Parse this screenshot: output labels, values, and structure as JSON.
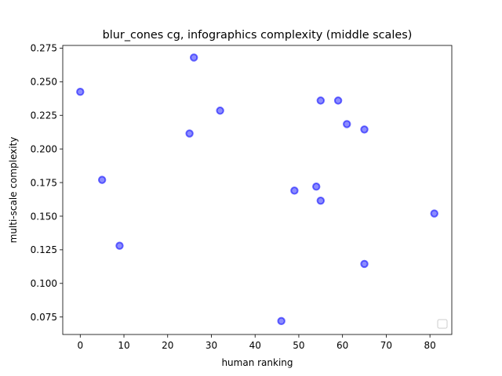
{
  "chart_data": {
    "type": "scatter",
    "title": "blur_cones cg, infographics complexity (middle scales)",
    "xlabel": "human ranking",
    "ylabel": "multi-scale complexity",
    "xlim": [
      -4,
      85
    ],
    "ylim": [
      0.062,
      0.277
    ],
    "xticks": [
      0,
      10,
      20,
      30,
      40,
      50,
      60,
      70,
      80
    ],
    "yticks": [
      0.075,
      0.1,
      0.125,
      0.15,
      0.175,
      0.2,
      0.225,
      0.25,
      0.275
    ],
    "xtick_labels": [
      "0",
      "10",
      "20",
      "30",
      "40",
      "50",
      "60",
      "70",
      "80"
    ],
    "ytick_labels": [
      "0.075",
      "0.100",
      "0.125",
      "0.150",
      "0.175",
      "0.200",
      "0.225",
      "0.250",
      "0.275"
    ],
    "grid": false,
    "legend": "lower-right (empty)",
    "marker_color": "#0000ff",
    "points": [
      {
        "x": 0,
        "y": 0.2425
      },
      {
        "x": 5,
        "y": 0.177
      },
      {
        "x": 9,
        "y": 0.128
      },
      {
        "x": 25,
        "y": 0.2115
      },
      {
        "x": 26,
        "y": 0.268
      },
      {
        "x": 32,
        "y": 0.2285
      },
      {
        "x": 46,
        "y": 0.072
      },
      {
        "x": 49,
        "y": 0.169
      },
      {
        "x": 54,
        "y": 0.172
      },
      {
        "x": 55,
        "y": 0.236
      },
      {
        "x": 55,
        "y": 0.1615
      },
      {
        "x": 59,
        "y": 0.236
      },
      {
        "x": 61,
        "y": 0.2185
      },
      {
        "x": 65,
        "y": 0.2145
      },
      {
        "x": 65,
        "y": 0.1145
      },
      {
        "x": 81,
        "y": 0.152
      }
    ]
  }
}
